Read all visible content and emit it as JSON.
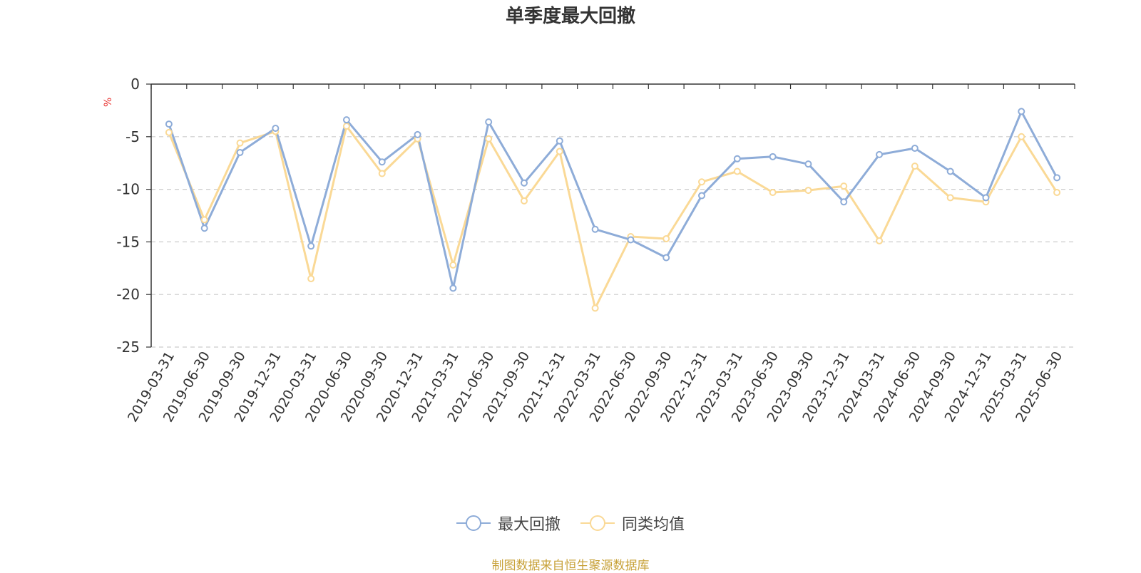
{
  "page": {
    "title": "单季度最大回撤",
    "source": "制图数据来自恒生聚源数据库",
    "source_color": "#c8a23a"
  },
  "chart_data": {
    "type": "line",
    "title": "单季度最大回撤",
    "ylabel": "%",
    "ylabel_color": "#e8312f",
    "ylim": [
      -25,
      0
    ],
    "yticks": [
      0,
      -5,
      -10,
      -15,
      -20,
      -25
    ],
    "grid": true,
    "legend_position": "bottom",
    "categories": [
      "2019-03-31",
      "2019-06-30",
      "2019-09-30",
      "2019-12-31",
      "2020-03-31",
      "2020-06-30",
      "2020-09-30",
      "2020-12-31",
      "2021-03-31",
      "2021-06-30",
      "2021-09-30",
      "2021-12-31",
      "2022-03-31",
      "2022-06-30",
      "2022-09-30",
      "2022-12-31",
      "2023-03-31",
      "2023-06-30",
      "2023-09-30",
      "2023-12-31",
      "2024-03-31",
      "2024-06-30",
      "2024-09-30",
      "2024-12-31",
      "2025-03-31",
      "2025-06-30"
    ],
    "series": [
      {
        "name": "最大回撤",
        "color": "#8eacd8",
        "values": [
          -3.8,
          -13.7,
          -6.5,
          -4.2,
          -15.4,
          -3.4,
          -7.4,
          -4.8,
          -19.4,
          -3.6,
          -9.4,
          -5.4,
          -13.8,
          -14.8,
          -16.5,
          -10.6,
          -7.1,
          -6.9,
          -7.6,
          -11.2,
          -6.7,
          -6.1,
          -8.3,
          -10.8,
          -2.6,
          -8.9
        ]
      },
      {
        "name": "同类均值",
        "color": "#fad996",
        "values": [
          -4.6,
          -12.9,
          -5.6,
          -4.5,
          -18.5,
          -4.0,
          -8.5,
          -5.2,
          -17.2,
          -5.2,
          -11.1,
          -6.4,
          -21.3,
          -14.5,
          -14.7,
          -9.3,
          -8.3,
          -10.3,
          -10.1,
          -9.7,
          -14.9,
          -7.8,
          -10.8,
          -11.2,
          -5.0,
          -10.3
        ]
      }
    ]
  }
}
